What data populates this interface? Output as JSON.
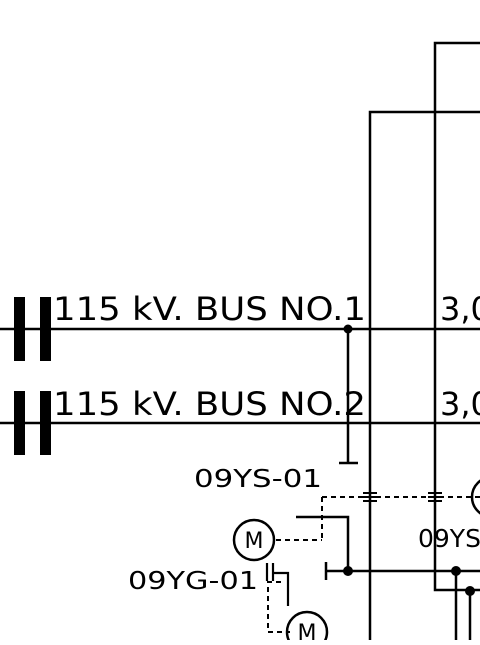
{
  "buses": [
    {
      "label": "115 kV. BUS NO.1",
      "right_label": "3,0"
    },
    {
      "label": "115 kV. BUS NO.2",
      "right_label": "3,0"
    }
  ],
  "tags": {
    "switch_top": "09YS-01",
    "switch_right": "09YS",
    "grounding": "09YG-01"
  },
  "motor_symbol": "M",
  "colors": {
    "line": "#000000",
    "background": "#ffffff"
  }
}
